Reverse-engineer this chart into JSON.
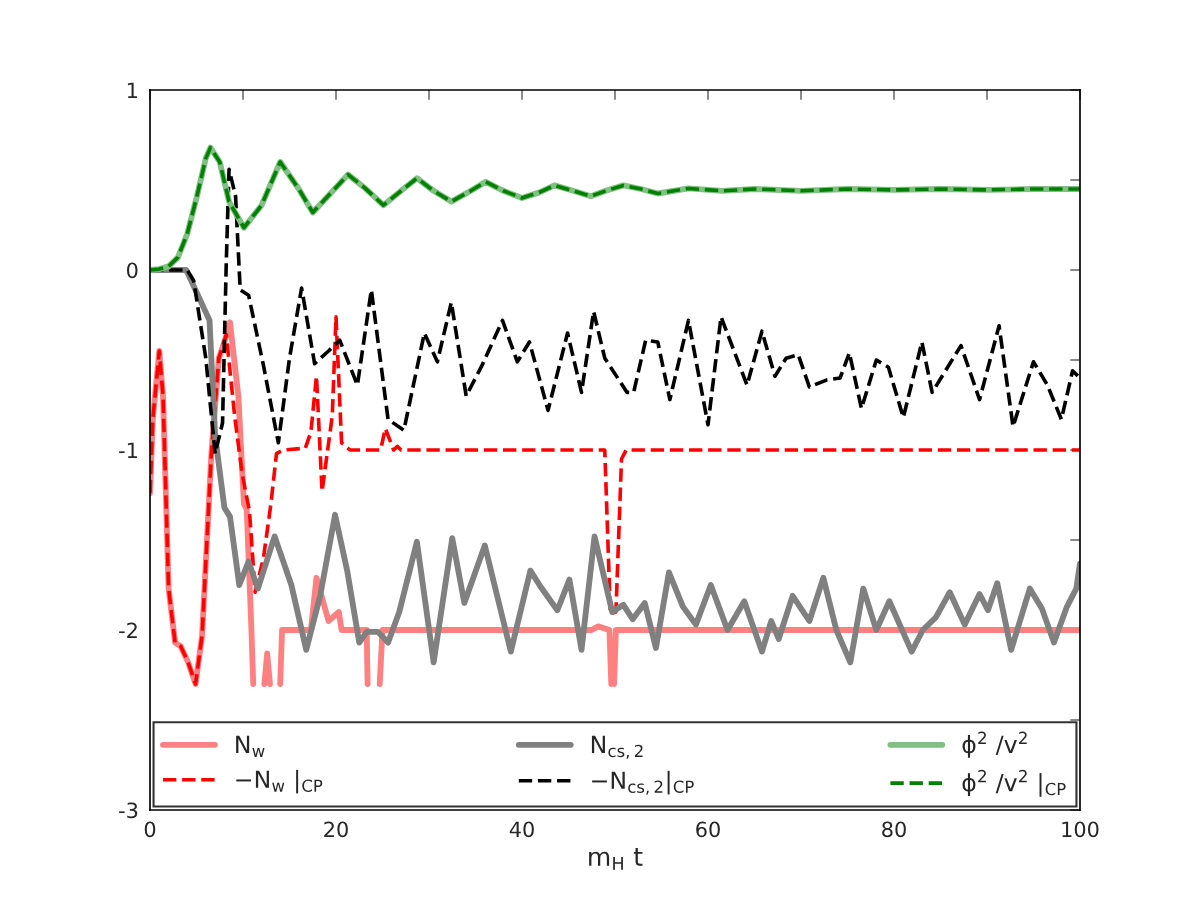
{
  "chart_data": {
    "type": "line",
    "xlabel": "m$_{H}$ t",
    "xlim": [
      0,
      100
    ],
    "xticks": [
      0,
      {
        "value": 10,
        "label": null
      },
      20,
      {
        "value": 30,
        "label": null
      },
      40,
      {
        "value": 50,
        "label": null
      },
      60,
      {
        "value": 70,
        "label": null
      },
      80,
      {
        "value": 90,
        "label": null
      },
      100
    ],
    "ylim": [
      -3,
      1
    ],
    "yticks": [
      -3,
      {
        "value": -2.5,
        "label": null
      },
      -2,
      {
        "value": -1.5,
        "label": null
      },
      -1,
      {
        "value": -0.5,
        "label": null
      },
      0,
      {
        "value": 0.5,
        "label": null
      },
      1
    ],
    "grid": false,
    "legend": "bottom",
    "series": [
      {
        "name": "N$_{w}$",
        "color": "#ff8080",
        "line_style": "solid",
        "x": [
          0,
          0.3,
          1.0,
          1.4,
          2.0,
          2.7,
          3.3,
          4.1,
          4.9,
          5.6,
          6.6,
          7.4,
          8.0,
          8.6,
          9.5,
          10.1,
          10.4,
          10.9,
          11.1,
          11.2,
          12.3,
          12.6,
          12.9,
          13.0,
          14.0,
          14.2,
          17.3,
          17.9,
          19.2,
          20.3,
          20.6,
          23.3,
          23.4,
          23.5,
          24.7,
          25.0,
          47.5,
          48.2,
          49.4,
          49.6,
          49.7,
          49.9,
          50.1,
          100
        ],
        "values": [
          -1.24,
          -0.83,
          -0.45,
          -0.7,
          -1.77,
          -2.07,
          -2.09,
          -2.18,
          -2.3,
          -2.03,
          -1.02,
          -0.49,
          -0.4,
          -0.29,
          -0.7,
          -1.3,
          -1.33,
          -1.99,
          -2.3,
          null,
          -2.3,
          -2.13,
          -2.3,
          null,
          -2.3,
          -2.0,
          -2.0,
          -1.71,
          -1.95,
          -1.9,
          -2.0,
          -2.0,
          -2.3,
          null,
          -2.3,
          -2.0,
          -2.0,
          -1.98,
          -2.0,
          -2.3,
          null,
          -2.3,
          -2.0,
          -2.0
        ]
      },
      {
        "name": "−N$_{w}$ |$_{CP}$",
        "color": "#ff0000",
        "line_style": "dashed",
        "x": [
          0,
          0.3,
          1.0,
          1.4,
          2.0,
          2.7,
          3.3,
          4.1,
          4.9,
          5.6,
          6.6,
          7.4,
          8.2,
          9.1,
          9.9,
          10.7,
          11.3,
          12.2,
          13.0,
          13.6,
          14.3,
          16.7,
          17.3,
          17.9,
          18.5,
          19.6,
          20.0,
          20.6,
          21.5,
          24.8,
          25.3,
          26.2,
          26.6,
          27,
          48.9,
          49.5,
          50.1,
          50.7,
          51.2,
          100
        ],
        "values": [
          -1.24,
          -0.83,
          -0.45,
          -0.7,
          -1.77,
          -2.07,
          -2.09,
          -2.18,
          -2.3,
          -2.03,
          -1.02,
          -0.49,
          -0.36,
          -0.81,
          -1.13,
          -1.34,
          -1.79,
          -1.6,
          -1.3,
          -1.02,
          -1.0,
          -0.99,
          -0.9,
          -0.59,
          -1.23,
          -0.81,
          -0.26,
          -0.96,
          -1.0,
          -1.0,
          -0.88,
          -1.0,
          -0.98,
          -1.0,
          -1.0,
          -1.91,
          -1.9,
          -1.05,
          -1.0,
          -1.0
        ]
      },
      {
        "name": "N$_{cs,2}$",
        "color": "#808080",
        "line_style": "solid",
        "x": [
          0,
          3.9,
          6.4,
          7.0,
          8.0,
          8.6,
          9.6,
          10.6,
          11.6,
          13.4,
          15.2,
          16.8,
          18.3,
          19.9,
          21.2,
          22.5,
          23.3,
          24.5,
          25.6,
          26.8,
          28.7,
          30.5,
          32.5,
          33.8,
          36.0,
          38.8,
          40.9,
          42.0,
          43.8,
          45.1,
          46.4,
          47.8,
          49.7,
          50.9,
          51.9,
          53.2,
          54.4,
          55.8,
          57.3,
          58.7,
          60.3,
          62.1,
          63.9,
          65.8,
          66.8,
          67.6,
          69.1,
          70.9,
          72.4,
          73.8,
          75.3,
          76.7,
          78.1,
          79.5,
          81.9,
          83.1,
          84.5,
          86.0,
          87.6,
          89.2,
          90.1,
          91.1,
          92.6,
          94.6,
          95.9,
          97.2,
          98.6,
          99.6,
          100
        ],
        "values": [
          0,
          0,
          -0.28,
          -0.92,
          -1.32,
          -1.37,
          -1.75,
          -1.62,
          -1.77,
          -1.48,
          -1.75,
          -2.11,
          -1.81,
          -1.36,
          -1.67,
          -2.07,
          -2.01,
          -2.01,
          -2.07,
          -1.9,
          -1.51,
          -2.18,
          -1.49,
          -1.85,
          -1.53,
          -2.12,
          -1.67,
          -1.76,
          -1.89,
          -1.72,
          -2.11,
          -1.48,
          -1.9,
          -1.86,
          -1.94,
          -1.85,
          -2.1,
          -1.68,
          -1.87,
          -1.97,
          -1.75,
          -2.0,
          -1.84,
          -2.12,
          -1.95,
          -2.05,
          -1.81,
          -1.95,
          -1.71,
          -2.0,
          -2.18,
          -1.77,
          -2.0,
          -1.84,
          -2.12,
          -2.0,
          -1.93,
          -1.79,
          -1.97,
          -1.8,
          -1.89,
          -1.74,
          -2.11,
          -1.77,
          -1.88,
          -2.07,
          -1.87,
          -1.77,
          -1.63
        ]
      },
      {
        "name": "−N$_{cs,2}$|$_{CP}$",
        "color": "#000000",
        "line_style": "dashed",
        "x": [
          0,
          4.0,
          4.7,
          6.0,
          7.0,
          7.8,
          8.2,
          8.5,
          9.2,
          9.7,
          10.6,
          12.2,
          13.8,
          15.0,
          16.3,
          17.7,
          19.2,
          20.4,
          22.3,
          23.8,
          25.6,
          27.3,
          29.5,
          30.9,
          32.4,
          34.0,
          35.7,
          37.9,
          39.5,
          40.8,
          42.8,
          44.9,
          46.4,
          47.7,
          48.9,
          51.3,
          52.0,
          53.3,
          54.6,
          55.9,
          57.9,
          60.0,
          61.4,
          64.2,
          65.8,
          67.2,
          68.4,
          69.7,
          70.9,
          72.8,
          74.2,
          75.2,
          76.5,
          78.1,
          79.4,
          81.0,
          83.0,
          84.1,
          87.2,
          89.2,
          91.3,
          92.8,
          95.0,
          96.5,
          98.0,
          99.2,
          100
        ],
        "values": [
          0,
          0,
          -0.06,
          -0.49,
          -1.02,
          -0.85,
          0.04,
          0.56,
          0.41,
          -0.11,
          -0.14,
          -0.53,
          -0.96,
          -0.49,
          -0.1,
          -0.52,
          -0.45,
          -0.39,
          -0.64,
          -0.11,
          -0.83,
          -0.89,
          -0.35,
          -0.51,
          -0.18,
          -0.7,
          -0.53,
          -0.28,
          -0.51,
          -0.4,
          -0.78,
          -0.35,
          -0.68,
          -0.23,
          -0.49,
          -0.68,
          -0.68,
          -0.39,
          -0.4,
          -0.72,
          -0.28,
          -0.86,
          -0.26,
          -0.64,
          -0.34,
          -0.59,
          -0.49,
          -0.47,
          -0.65,
          -0.61,
          -0.6,
          -0.46,
          -0.77,
          -0.5,
          -0.54,
          -0.82,
          -0.4,
          -0.68,
          -0.42,
          -0.72,
          -0.31,
          -0.87,
          -0.51,
          -0.64,
          -0.83,
          -0.56,
          -0.6
        ]
      },
      {
        "name": "ϕ$^{2}$ /v$^{2}$",
        "color": "#80c080",
        "line_style": "solid",
        "x": [
          0,
          1,
          2,
          3,
          4,
          5,
          6,
          6.5,
          7.5,
          8.5,
          10.1,
          12,
          14,
          16,
          17.5,
          19.5,
          21.3,
          23,
          25.1,
          27,
          28.7,
          30.5,
          32.4,
          34.5,
          36.1,
          38,
          40,
          41.8,
          43.5,
          45.5,
          47.4,
          49,
          50.9,
          52.8,
          54.6,
          57.9,
          61.5,
          65,
          70,
          75,
          80,
          85,
          90,
          95,
          100
        ],
        "values": [
          0,
          0.005,
          0.02,
          0.07,
          0.2,
          0.4,
          0.62,
          0.68,
          0.6,
          0.38,
          0.235,
          0.36,
          0.6,
          0.45,
          0.32,
          0.43,
          0.53,
          0.46,
          0.36,
          0.44,
          0.51,
          0.44,
          0.38,
          0.44,
          0.49,
          0.44,
          0.4,
          0.43,
          0.47,
          0.44,
          0.41,
          0.44,
          0.47,
          0.45,
          0.425,
          0.453,
          0.44,
          0.45,
          0.44,
          0.45,
          0.445,
          0.45,
          0.445,
          0.45,
          0.45
        ]
      },
      {
        "name": "ϕ$^{2}$ /v$^{2}$ |$_{CP}$",
        "color": "#008000",
        "line_style": "dashed",
        "x": [
          0,
          1,
          2,
          3,
          4,
          5,
          6,
          6.5,
          7.5,
          8.5,
          10.1,
          12,
          14,
          16,
          17.5,
          19.5,
          21.3,
          23,
          25.1,
          27,
          28.7,
          30.5,
          32.4,
          34.5,
          36.1,
          38,
          40,
          41.8,
          43.5,
          45.5,
          47.4,
          49,
          50.9,
          52.8,
          54.6,
          57.9,
          61.5,
          65,
          70,
          75,
          80,
          85,
          90,
          95,
          100
        ],
        "values": [
          0,
          0.005,
          0.02,
          0.07,
          0.2,
          0.4,
          0.62,
          0.68,
          0.6,
          0.38,
          0.235,
          0.36,
          0.6,
          0.45,
          0.32,
          0.43,
          0.53,
          0.46,
          0.36,
          0.44,
          0.51,
          0.44,
          0.38,
          0.44,
          0.49,
          0.44,
          0.4,
          0.43,
          0.47,
          0.44,
          0.41,
          0.44,
          0.47,
          0.45,
          0.425,
          0.453,
          0.44,
          0.45,
          0.44,
          0.45,
          0.445,
          0.45,
          0.445,
          0.45,
          0.45
        ]
      }
    ]
  }
}
